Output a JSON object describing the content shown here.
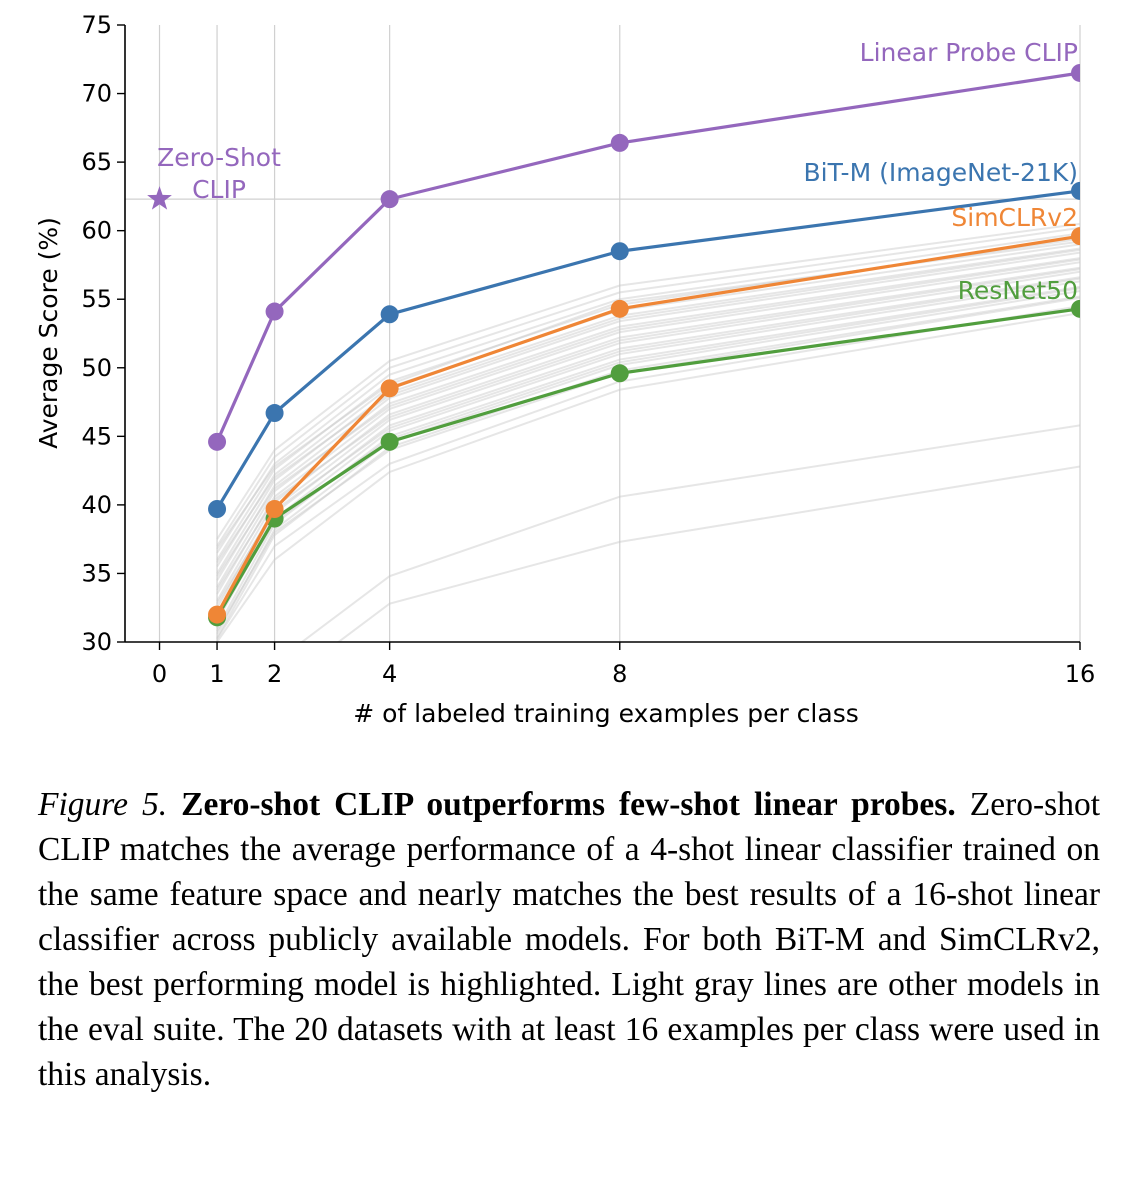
{
  "chart_data": {
    "type": "line",
    "xlabel": "# of labeled training examples per class",
    "ylabel": "Average Score (%)",
    "xlim": [
      -0.6,
      16
    ],
    "ylim": [
      30,
      75
    ],
    "x_ticks": [
      0,
      1,
      2,
      4,
      8,
      16
    ],
    "y_ticks": [
      30,
      35,
      40,
      45,
      50,
      55,
      60,
      65,
      70,
      75
    ],
    "grid": "vertical at x ticks, horizontal reference at zero-shot score",
    "zero_shot": {
      "label_line1": "Zero-Shot",
      "label_line2": "CLIP",
      "x": 0,
      "y": 62.3,
      "marker": "star",
      "color": "#9467bd"
    },
    "series": [
      {
        "name": "Linear Probe CLIP",
        "x": [
          1,
          2,
          4,
          8,
          16
        ],
        "values": [
          44.6,
          54.1,
          62.3,
          66.4,
          71.5
        ],
        "color": "#9467bd"
      },
      {
        "name": "BiT-M (ImageNet-21K)",
        "x": [
          1,
          2,
          4,
          8,
          16
        ],
        "values": [
          39.7,
          46.7,
          53.9,
          58.5,
          62.9
        ],
        "color": "#3b75af"
      },
      {
        "name": "SimCLRv2",
        "x": [
          1,
          2,
          4,
          8,
          16
        ],
        "values": [
          32.0,
          39.7,
          48.5,
          54.3,
          59.6
        ],
        "color": "#ef8636"
      },
      {
        "name": "ResNet50",
        "x": [
          1,
          2,
          4,
          8,
          16
        ],
        "values": [
          31.8,
          39.0,
          44.6,
          49.6,
          54.3
        ],
        "color": "#519e3e"
      }
    ],
    "background_series_color": "#c8c8c8",
    "background_series": [
      [
        37.5,
        44.0,
        50.5,
        56.0,
        60.5
      ],
      [
        37.0,
        43.5,
        50.0,
        55.5,
        60.2
      ],
      [
        36.5,
        43.0,
        49.5,
        55.0,
        59.8
      ],
      [
        36.0,
        42.6,
        49.0,
        54.6,
        59.4
      ],
      [
        35.5,
        42.2,
        48.6,
        54.2,
        59.0
      ],
      [
        35.0,
        41.8,
        48.2,
        53.8,
        58.7
      ],
      [
        34.5,
        41.4,
        47.8,
        53.4,
        58.4
      ],
      [
        34.0,
        41.0,
        47.4,
        53.0,
        58.0
      ],
      [
        33.5,
        40.6,
        47.0,
        52.6,
        57.7
      ],
      [
        33.0,
        40.2,
        46.6,
        52.2,
        57.3
      ],
      [
        32.5,
        39.8,
        46.2,
        51.8,
        57.0
      ],
      [
        32.0,
        39.4,
        45.8,
        51.4,
        56.6
      ],
      [
        31.5,
        39.0,
        45.4,
        51.0,
        56.3
      ],
      [
        31.0,
        38.6,
        45.0,
        50.6,
        55.9
      ],
      [
        30.6,
        38.2,
        44.6,
        50.2,
        55.6
      ],
      [
        30.3,
        37.8,
        44.2,
        49.8,
        55.2
      ],
      [
        36.8,
        42.8,
        48.8,
        54.8,
        59.2
      ],
      [
        35.8,
        42.0,
        48.0,
        53.6,
        58.6
      ],
      [
        34.8,
        41.2,
        47.2,
        52.8,
        57.9
      ],
      [
        33.8,
        40.4,
        46.4,
        52.0,
        57.2
      ],
      [
        32.8,
        39.6,
        45.6,
        51.2,
        56.5
      ],
      [
        31.8,
        38.8,
        44.8,
        50.4,
        55.8
      ],
      [
        30.8,
        38.0,
        44.0,
        49.6,
        55.1
      ],
      [
        30.2,
        37.0,
        43.0,
        49.0,
        54.5
      ],
      [
        30.0,
        36.0,
        42.4,
        48.4,
        54.0
      ],
      [
        28.0,
        28.5,
        34.8,
        40.6,
        45.8
      ],
      [
        26.0,
        26.5,
        32.8,
        37.3,
        42.8
      ]
    ]
  },
  "caption": {
    "label": "Figure 5.",
    "title": "Zero-shot CLIP outperforms few-shot linear probes.",
    "body": "Zero-shot CLIP matches the average performance of a 4-shot linear classifier trained on the same feature space and nearly matches the best results of a 16-shot linear classifier across publicly available models.  For both BiT-M and SimCLRv2, the best performing model is highlighted. Light gray lines are other models in the eval suite.  The 20 datasets with at least 16 examples per class were used in this analysis."
  }
}
